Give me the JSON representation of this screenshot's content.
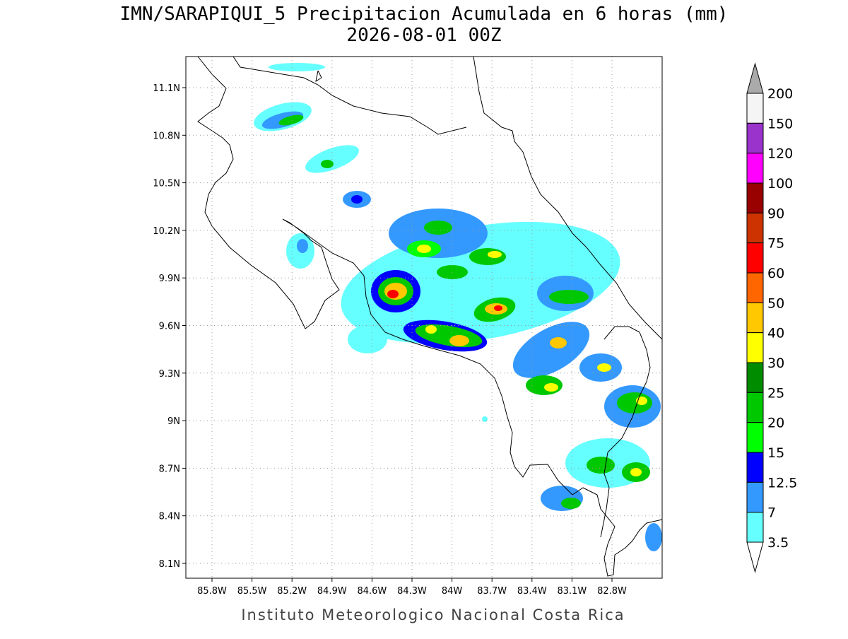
{
  "map": {
    "title": "IMN/SARAPIQUI_5 Precipitacion Acumulada en 6 horas (mm)",
    "subtitle": "2026-08-01 00Z",
    "lon_ticks": [
      "85.8W",
      "85.5W",
      "85.2W",
      "84.9W",
      "84.6W",
      "84.3W",
      "84W",
      "83.7W",
      "83.4W",
      "83.1W",
      "82.8W"
    ],
    "lat_ticks": [
      "11.1N",
      "10.8N",
      "10.5N",
      "10.2N",
      "9.9N",
      "9.6N",
      "9.3N",
      "9N",
      "8.7N",
      "8.4N",
      "8.1N"
    ],
    "colorbar": {
      "labels": [
        "200",
        "150",
        "120",
        "100",
        "90",
        "75",
        "60",
        "50",
        "40",
        "30",
        "25",
        "20",
        "15",
        "12.5",
        "7",
        "3.5"
      ],
      "colors": [
        "#f5f5f5",
        "#9933cc",
        "#ff00ff",
        "#990000",
        "#cc3300",
        "#ff0000",
        "#ff6600",
        "#ffc800",
        "#ffff00",
        "#008c00",
        "#00c800",
        "#00ff00",
        "#0000ff",
        "#3399ff",
        "#66ffff"
      ],
      "over_color": "#aaaaaa",
      "under_color": "#ffffff"
    },
    "credit": "Instituto Meteorologico Nacional Costa Rica"
  }
}
